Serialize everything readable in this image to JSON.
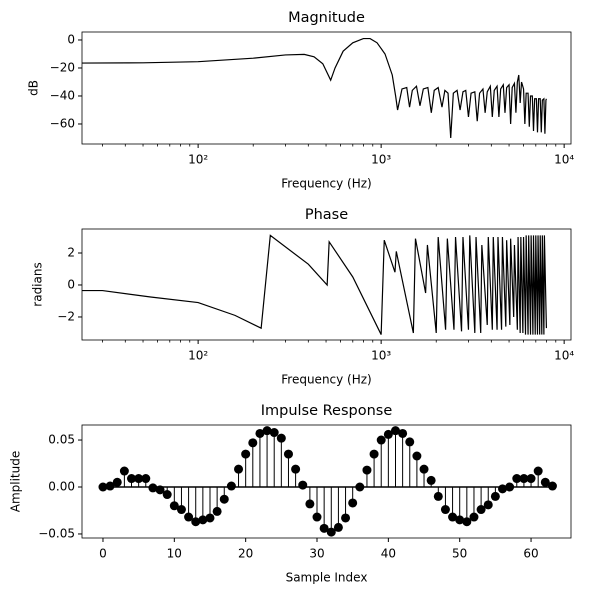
{
  "chart_data": [
    {
      "type": "line",
      "title": "Magnitude",
      "xlabel": "Frequency (Hz)",
      "ylabel": "dB",
      "log_x": true,
      "color": "#000000",
      "x": [
        23.2,
        50,
        100,
        200,
        300,
        380,
        430,
        480,
        530,
        560,
        620,
        700,
        800,
        870,
        950,
        1050,
        1150,
        1200,
        1230,
        1300,
        1380,
        1430,
        1480,
        1560,
        1630,
        1700,
        1800,
        1880,
        1950,
        2050,
        2150,
        2230,
        2320,
        2400,
        2480,
        2600,
        2700,
        2800,
        2900,
        3000,
        3100,
        3250,
        3350,
        3450,
        3600,
        3700,
        3800,
        3950,
        4050,
        4150,
        4300,
        4400,
        4500,
        4650,
        4750,
        4850,
        5000,
        5100,
        5200,
        5350,
        5450,
        5550,
        5650,
        5750,
        5850,
        6000,
        6100,
        6200,
        6350,
        6450,
        6550,
        6700,
        6800,
        6900,
        7050,
        7150,
        7250,
        7400,
        7500,
        7600,
        7750,
        7850,
        7950,
        8000
      ],
      "values": [
        -16.5,
        -16.3,
        -15.5,
        -13,
        -10.7,
        -10.3,
        -12,
        -17,
        -28.7,
        -20,
        -8,
        -2,
        1,
        1,
        -2,
        -10,
        -25,
        -40,
        -50,
        -35,
        -34,
        -48,
        -36,
        -33,
        -47,
        -35,
        -34,
        -52,
        -36,
        -34,
        -48,
        -36,
        -38,
        -70,
        -38,
        -36,
        -50,
        -37,
        -36,
        -55,
        -38,
        -37,
        -58,
        -38,
        -35,
        -52,
        -37,
        -33,
        -55,
        -36,
        -33,
        -55,
        -35,
        -32,
        -52,
        -34,
        -32,
        -60,
        -34,
        -31,
        -52,
        -30,
        -25,
        -45,
        -30,
        -35,
        -60,
        -38,
        -38,
        -62,
        -40,
        -40,
        -65,
        -42,
        -42,
        -66,
        -42,
        -42,
        -66,
        -43,
        -42,
        -67,
        -43,
        -42
      ],
      "xlim": [
        23.2,
        10900
      ],
      "ylim": [
        -74.3,
        5.7
      ],
      "xticks": [
        {
          "value": 100,
          "label": "10²"
        },
        {
          "value": 1000,
          "label": "10³"
        },
        {
          "value": 10000,
          "label": "10⁴"
        }
      ],
      "xminorticks": [
        30,
        40,
        50,
        60,
        70,
        80,
        90,
        200,
        300,
        400,
        500,
        600,
        700,
        800,
        900,
        2000,
        3000,
        4000,
        5000,
        6000,
        7000,
        8000,
        9000
      ],
      "yticks": [
        {
          "value": 0,
          "label": "0"
        },
        {
          "value": -20,
          "label": "−20"
        },
        {
          "value": -40,
          "label": "−40"
        },
        {
          "value": -60,
          "label": "−60"
        }
      ]
    },
    {
      "type": "line",
      "title": "Phase",
      "xlabel": "Frequency (Hz)",
      "ylabel": "radians",
      "log_x": true,
      "color": "#000000",
      "x": [
        23.2,
        30,
        55,
        100,
        159,
        221,
        248,
        400,
        507,
        520,
        700,
        1000,
        1040,
        1190,
        1210,
        1500,
        1540,
        1750,
        1790,
        2000,
        2050,
        2250,
        2300,
        2500,
        2550,
        2750,
        2800,
        3000,
        3050,
        3250,
        3300,
        3500,
        3550,
        3800,
        3850,
        4050,
        4100,
        4300,
        4350,
        4550,
        4600,
        4800,
        4850,
        5050,
        5100,
        5300,
        5350,
        5550,
        5600,
        5750,
        5800,
        5950,
        6000,
        6150,
        6200,
        6350,
        6400,
        6550,
        6600,
        6750,
        6800,
        6950,
        7000,
        7150,
        7200,
        7350,
        7400,
        7550,
        7600,
        7750,
        7800,
        8000
      ],
      "values": [
        -0.35,
        -0.35,
        -0.75,
        -1.1,
        -1.9,
        -2.7,
        3.1,
        1.3,
        0.0,
        2.7,
        0.5,
        -3.1,
        2.8,
        0.8,
        2.1,
        -3.0,
        2.9,
        -0.5,
        2.5,
        -3,
        3,
        -2.8,
        2.9,
        -2.8,
        3.0,
        -2.9,
        3,
        -2.8,
        3.1,
        -3,
        3,
        -3,
        2.5,
        -2.5,
        3,
        -2.8,
        3,
        -2.8,
        3,
        -2.8,
        3,
        -2.6,
        2.8,
        -2.5,
        2.9,
        -2,
        2.5,
        -2.8,
        3,
        -3,
        3,
        -3,
        3,
        -3.1,
        3.1,
        -3.1,
        3.1,
        -3.1,
        3.1,
        -3.1,
        3.1,
        -3.1,
        3.1,
        -3.1,
        3.1,
        -3.1,
        3.1,
        -3.1,
        3.1,
        -3.1,
        3.1,
        -2.7
      ],
      "xlim": [
        23.2,
        10900
      ],
      "ylim": [
        -3.44,
        3.5
      ],
      "xticks": [
        {
          "value": 100,
          "label": "10²"
        },
        {
          "value": 1000,
          "label": "10³"
        },
        {
          "value": 10000,
          "label": "10⁴"
        }
      ],
      "xminorticks": [
        30,
        40,
        50,
        60,
        70,
        80,
        90,
        200,
        300,
        400,
        500,
        600,
        700,
        800,
        900,
        2000,
        3000,
        4000,
        5000,
        6000,
        7000,
        8000,
        9000
      ],
      "yticks": [
        {
          "value": 2,
          "label": "2"
        },
        {
          "value": 0,
          "label": "0"
        },
        {
          "value": -2,
          "label": "−2"
        }
      ]
    },
    {
      "type": "stem",
      "title": "Impulse Response",
      "xlabel": "Sample Index",
      "ylabel": "Amplitude",
      "color": "#000000",
      "x": [
        0,
        1,
        2,
        3,
        4,
        5,
        6,
        7,
        8,
        9,
        10,
        11,
        12,
        13,
        14,
        15,
        16,
        17,
        18,
        19,
        20,
        21,
        22,
        23,
        24,
        25,
        26,
        27,
        28,
        29,
        30,
        31,
        32,
        33,
        34,
        35,
        36,
        37,
        38,
        39,
        40,
        41,
        42,
        43,
        44,
        45,
        46,
        47,
        48,
        49,
        50,
        51,
        52,
        53,
        54,
        55,
        56,
        57,
        58,
        59,
        60,
        61,
        62,
        63
      ],
      "values": [
        0,
        0.001,
        0.005,
        0.017,
        0.009,
        0.009,
        0.009,
        -0.001,
        -0.003,
        -0.008,
        -0.02,
        -0.024,
        -0.032,
        -0.037,
        -0.035,
        -0.033,
        -0.026,
        -0.013,
        0.001,
        0.019,
        0.035,
        0.047,
        0.057,
        0.06,
        0.058,
        0.052,
        0.035,
        0.019,
        0.002,
        -0.018,
        -0.032,
        -0.044,
        -0.048,
        -0.043,
        -0.033,
        -0.017,
        0,
        0.018,
        0.035,
        0.05,
        0.056,
        0.06,
        0.057,
        0.048,
        0.033,
        0.019,
        0.007,
        -0.01,
        -0.024,
        -0.032,
        -0.035,
        -0.037,
        -0.032,
        -0.024,
        -0.019,
        -0.01,
        -0.002,
        0,
        0.009,
        0.009,
        0.009,
        0.017,
        0.005,
        0.001
      ],
      "xlim": [
        -2.94,
        65.6
      ],
      "ylim": [
        -0.0543,
        0.066
      ],
      "xticks": [
        0,
        10,
        20,
        30,
        40,
        50,
        60
      ],
      "yticks": [
        {
          "value": 0.05,
          "label": "0.05"
        },
        {
          "value": 0,
          "label": "0.00"
        },
        {
          "value": -0.05,
          "label": "−0.05"
        }
      ]
    }
  ]
}
